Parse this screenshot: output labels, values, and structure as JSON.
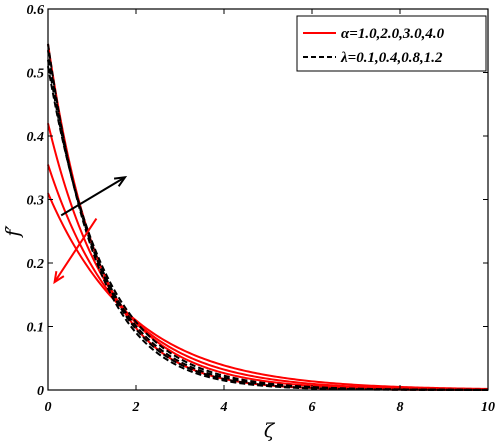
{
  "chart_data": {
    "type": "line",
    "xlabel": "ζ",
    "ylabel": "f′",
    "xlim": [
      0,
      10
    ],
    "ylim": [
      0,
      0.6
    ],
    "x_ticks": [
      "0",
      "2",
      "4",
      "6",
      "8",
      "10"
    ],
    "y_ticks": [
      "0",
      "0.1",
      "0.2",
      "0.3",
      "0.4",
      "0.5",
      "0.6"
    ],
    "grid": false,
    "legend_position": "top-right",
    "legend": [
      {
        "label": "α=1.0,2.0,3.0,4.0",
        "color": "#ff0000",
        "style": "solid"
      },
      {
        "label": "λ=0.1,0.4,0.8,1.2",
        "color": "#000000",
        "style": "dashed"
      }
    ],
    "series": [
      {
        "group": "α",
        "color": "#ff0000",
        "style": "solid",
        "f0": 0.31,
        "decay": 0.52
      },
      {
        "group": "α",
        "color": "#ff0000",
        "style": "solid",
        "f0": 0.355,
        "decay": 0.6
      },
      {
        "group": "α",
        "color": "#ff0000",
        "style": "solid",
        "f0": 0.42,
        "decay": 0.69
      },
      {
        "group": "α",
        "color": "#ff0000",
        "style": "solid",
        "f0": 0.545,
        "decay": 0.86
      },
      {
        "group": "λ",
        "color": "#000000",
        "style": "dashed",
        "f0": 0.51,
        "decay": 0.78
      },
      {
        "group": "λ",
        "color": "#000000",
        "style": "dashed",
        "f0": 0.52,
        "decay": 0.82
      },
      {
        "group": "λ",
        "color": "#000000",
        "style": "dashed",
        "f0": 0.535,
        "decay": 0.86
      },
      {
        "group": "λ",
        "color": "#000000",
        "style": "dashed",
        "f0": 0.545,
        "decay": 0.9
      }
    ],
    "annotations": [
      {
        "name": "black-trend-arrow",
        "color": "#000000",
        "from": [
          0.3,
          0.275
        ],
        "to": [
          1.75,
          0.335
        ]
      },
      {
        "name": "red-trend-arrow",
        "color": "#ff0000",
        "from": [
          1.1,
          0.27
        ],
        "to": [
          0.15,
          0.17
        ]
      }
    ]
  }
}
